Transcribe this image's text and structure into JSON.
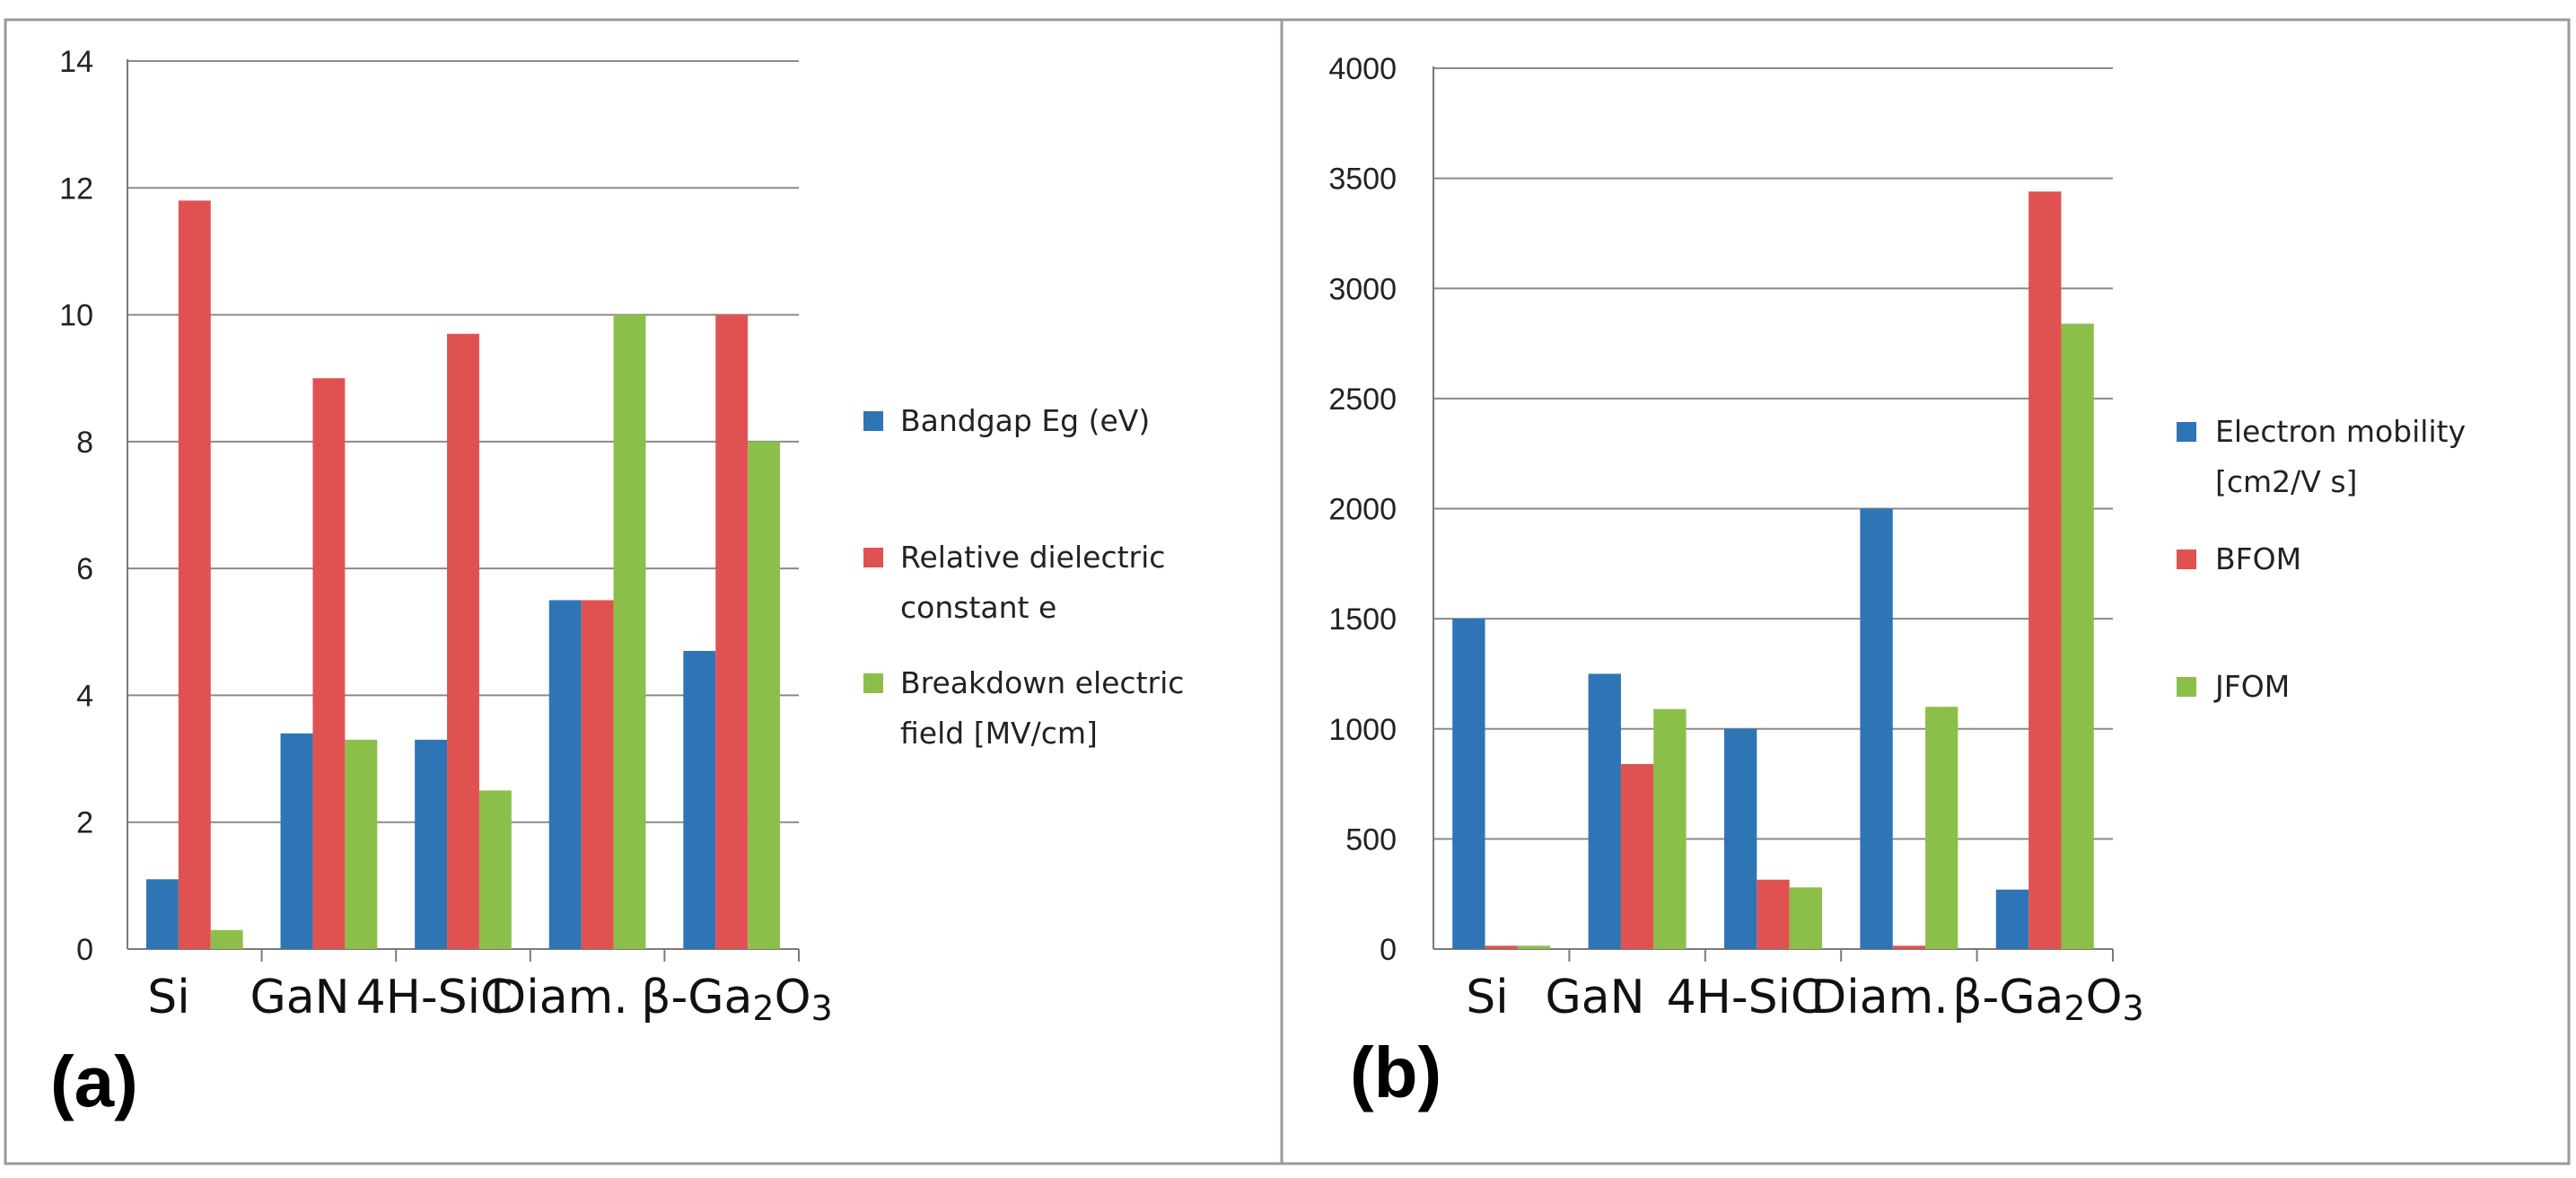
{
  "colors": {
    "series": [
      "#2E75B6",
      "#E05252",
      "#8CBF4A"
    ],
    "grid": "#8a8a8a",
    "frame": "#9a9a9a"
  },
  "chart_data": [
    {
      "type": "bar",
      "panel_label": "(a)",
      "categories": [
        {
          "main": "Si"
        },
        {
          "main": "GaN"
        },
        {
          "main": "4H-SiC"
        },
        {
          "main": "Diam."
        },
        {
          "main": "β-Ga",
          "sub1": "2",
          "mid": "O",
          "sub2": "3"
        }
      ],
      "series": [
        {
          "name": "Bandgap Eg (eV)",
          "legend_lines": [
            "Bandgap Eg (eV)"
          ],
          "values": [
            1.1,
            3.4,
            3.3,
            5.5,
            4.7
          ]
        },
        {
          "name": "Relative dielectric constant e",
          "legend_lines": [
            "Relative dielectric",
            "constant e"
          ],
          "values": [
            11.8,
            9.0,
            9.7,
            5.5,
            10.0
          ]
        },
        {
          "name": "Breakdown electric field [MV/cm]",
          "legend_lines": [
            "Breakdown electric",
            "field [MV/cm]"
          ],
          "values": [
            0.3,
            3.3,
            2.5,
            10.0,
            8.0
          ]
        }
      ],
      "yticks": [
        "0",
        "2",
        "4",
        "6",
        "8",
        "10",
        "12",
        "14"
      ],
      "ylim": [
        0,
        14
      ],
      "grid": true,
      "legend_position": "right",
      "title": "",
      "xlabel": "",
      "ylabel": ""
    },
    {
      "type": "bar",
      "panel_label": "(b)",
      "categories": [
        {
          "main": "Si"
        },
        {
          "main": "GaN"
        },
        {
          "main": "4H-SiC"
        },
        {
          "main": "Diam."
        },
        {
          "main": "β-Ga",
          "sub1": "2",
          "mid": "O",
          "sub2": "3"
        }
      ],
      "series": [
        {
          "name": "Electron mobility [cm2/V s]",
          "legend_lines": [
            "Electron mobility",
            "[cm2/V s]"
          ],
          "values": [
            1500,
            1250,
            1000,
            2000,
            270
          ]
        },
        {
          "name": "BFOM",
          "legend_lines": [
            "BFOM"
          ],
          "values": [
            15,
            840,
            315,
            15,
            3440
          ]
        },
        {
          "name": "JFOM",
          "legend_lines": [
            "JFOM"
          ],
          "values": [
            15,
            1090,
            280,
            1100,
            2840
          ]
        }
      ],
      "yticks": [
        "0",
        "500",
        "1000",
        "1500",
        "2000",
        "2500",
        "3000",
        "3500",
        "4000"
      ],
      "ylim": [
        0,
        4000
      ],
      "grid": true,
      "legend_position": "right",
      "title": "",
      "xlabel": "",
      "ylabel": ""
    }
  ]
}
